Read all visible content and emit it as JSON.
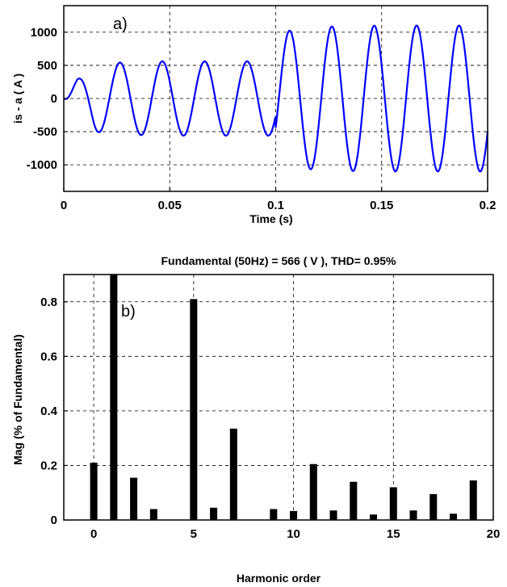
{
  "chart_data": [
    {
      "type": "line",
      "panel_label": "a)",
      "title": "",
      "xlabel": "Time (s)",
      "ylabel": "is - a   ( A )",
      "xlim": [
        0,
        0.2
      ],
      "ylim": [
        -1400,
        1400
      ],
      "xticks": [
        0,
        0.05,
        0.1,
        0.15,
        0.2
      ],
      "xtick_labels": [
        "0",
        "0.05",
        "0.1",
        "0.15",
        "0.2"
      ],
      "yticks": [
        1000,
        500,
        0,
        -500,
        -1000
      ],
      "ytick_labels": [
        "1000",
        "500",
        "0",
        "-500",
        "-1000"
      ],
      "grid": true,
      "line_color": "#0000ff",
      "series": [
        {
          "frequency_hz": 50,
          "segments": [
            {
              "t_start": 0.0,
              "t_end": 0.1,
              "amplitude_peak": 560,
              "note": "steady sinusoid"
            },
            {
              "t_start": 0.1,
              "t_end": 0.2,
              "amplitude_peak": 1100,
              "note": "steady sinusoid"
            }
          ],
          "startup_peaks": [
            {
              "t": 0.0065,
              "value": 290
            },
            {
              "t": 0.0145,
              "value": -500
            },
            {
              "t": 0.025,
              "value": 540
            }
          ]
        }
      ]
    },
    {
      "type": "bar",
      "panel_label": "b)",
      "title": "Fundamental (50Hz) = 566  ( V ), THD= 0.95%",
      "xlabel": "Harmonic order",
      "ylabel": "Mag (% of Fundamental)",
      "xlim": [
        -1.5,
        20
      ],
      "ylim": [
        0,
        0.9
      ],
      "xticks": [
        0,
        5,
        10,
        15,
        20
      ],
      "xtick_labels": [
        "0",
        "5",
        "10",
        "15",
        "20"
      ],
      "yticks": [
        0,
        0.2,
        0.4,
        0.6,
        0.8
      ],
      "ytick_labels": [
        "0",
        "0.2",
        "0.4",
        "0.6",
        "0.8"
      ],
      "grid": true,
      "bar_color": "#000000",
      "categories": [
        0,
        1,
        2,
        3,
        4,
        5,
        6,
        7,
        8,
        9,
        10,
        11,
        12,
        13,
        14,
        15,
        16,
        17,
        18,
        19
      ],
      "values": [
        0.21,
        0.9,
        0.155,
        0.04,
        0,
        0.81,
        0.045,
        0.335,
        0,
        0.04,
        0.033,
        0.205,
        0.035,
        0.14,
        0.02,
        0.12,
        0.035,
        0.095,
        0.023,
        0.145
      ]
    }
  ]
}
